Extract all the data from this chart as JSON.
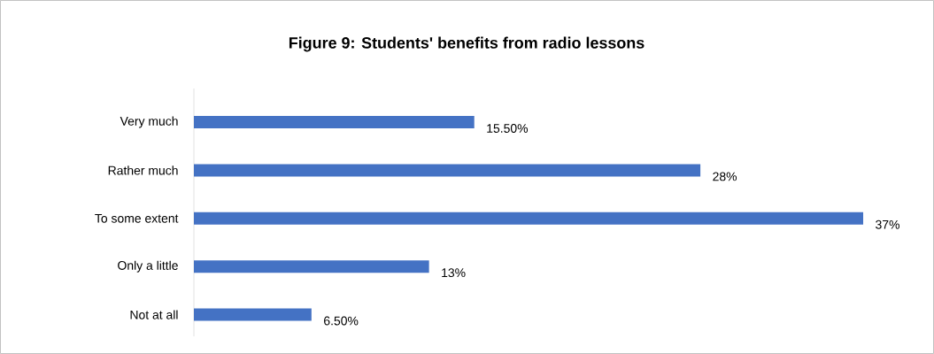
{
  "chart_data": {
    "type": "bar",
    "orientation": "horizontal",
    "title": "Figure 9: Students' benefits from radio lessons",
    "categories": [
      "Very much",
      "Rather much",
      "To some extent",
      "Only a little",
      "Not at all"
    ],
    "values": [
      15.5,
      28,
      37,
      13,
      6.5
    ],
    "value_labels": [
      "15.50%",
      "28%",
      "37%",
      "13%",
      "6.50%"
    ],
    "color": "#4472c4"
  }
}
